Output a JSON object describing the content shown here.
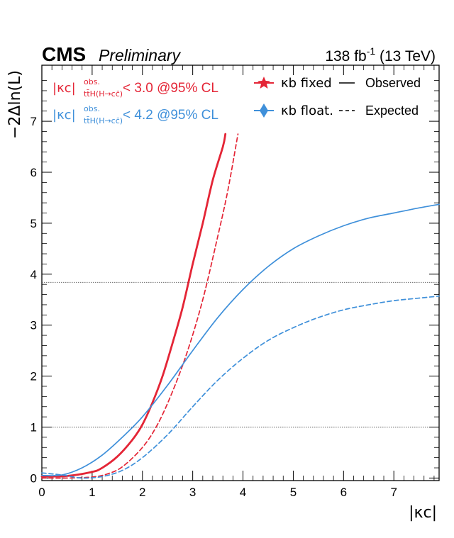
{
  "header": {
    "experiment": "CMS",
    "status": "Preliminary",
    "lumi_text": "138 fb",
    "lumi_exp": "-1",
    "energy_text": " (13 TeV)"
  },
  "axes": {
    "xlabel": "|κc|",
    "ylabel": "−2Δln(L)"
  },
  "annotations": {
    "limit_fixed": {
      "kc": "|κc|",
      "sup": "obs.",
      "sub": "tt̄H(H→cc̄)",
      "rest": " < 3.0 @95% CL",
      "color": "#e42536"
    },
    "limit_float": {
      "kc": "|κc|",
      "sup": "obs.",
      "sub": "tt̄H(H→cc̄)",
      "rest": " < 4.2 @95% CL",
      "color": "#3f90da"
    }
  },
  "legend": {
    "fixed": "κb fixed",
    "float": "κb float.",
    "observed": "Observed",
    "expected": "Expected"
  },
  "chart_data": {
    "type": "line",
    "xlabel": "|κc|",
    "ylabel": "−2Δln(L)",
    "xlim": [
      0,
      7.9
    ],
    "ylim": [
      -0.05,
      8.1
    ],
    "xticks": [
      0,
      1,
      2,
      3,
      4,
      5,
      6,
      7
    ],
    "yticks": [
      0,
      1,
      2,
      3,
      4,
      5,
      6,
      7
    ],
    "reference_lines": [
      1,
      3.84
    ],
    "grid": false,
    "legend_position": "top-right",
    "series": [
      {
        "name": "κb fixed",
        "kind": "Observed",
        "color": "#e42536",
        "linestyle": "solid",
        "x": [
          0,
          0.5,
          1.0,
          1.2,
          1.5,
          1.8,
          2.0,
          2.2,
          2.4,
          2.6,
          2.8,
          3.0,
          3.2,
          3.4,
          3.6,
          3.65
        ],
        "y": [
          0.03,
          0.04,
          0.12,
          0.2,
          0.42,
          0.75,
          1.05,
          1.48,
          2.0,
          2.65,
          3.35,
          4.2,
          5.0,
          5.85,
          6.5,
          6.75
        ]
      },
      {
        "name": "κb fixed",
        "kind": "Expected",
        "color": "#e42536",
        "linestyle": "dashed",
        "x": [
          0,
          0.5,
          1.0,
          1.3,
          1.6,
          2.0,
          2.3,
          2.6,
          2.9,
          3.2,
          3.5,
          3.7,
          3.9
        ],
        "y": [
          0,
          0,
          0.02,
          0.08,
          0.22,
          0.6,
          1.05,
          1.7,
          2.5,
          3.5,
          4.75,
          5.65,
          6.75
        ]
      },
      {
        "name": "κb float.",
        "kind": "Observed",
        "color": "#3f90da",
        "linestyle": "solid",
        "x": [
          0,
          0.4,
          0.8,
          1.2,
          1.6,
          2.0,
          2.5,
          3.0,
          3.5,
          4.0,
          4.5,
          5.0,
          5.5,
          6.0,
          6.5,
          7.0,
          7.5,
          7.9
        ],
        "y": [
          0.05,
          0.06,
          0.2,
          0.45,
          0.8,
          1.2,
          1.82,
          2.5,
          3.15,
          3.7,
          4.15,
          4.5,
          4.75,
          4.95,
          5.1,
          5.2,
          5.3,
          5.37
        ]
      },
      {
        "name": "κb float.",
        "kind": "Expected",
        "color": "#3f90da",
        "linestyle": "dashed",
        "x": [
          0,
          0.4,
          0.8,
          1.2,
          1.6,
          2.0,
          2.5,
          3.0,
          3.5,
          4.0,
          4.5,
          5.0,
          5.5,
          6.0,
          6.5,
          7.0,
          7.5,
          7.9
        ],
        "y": [
          0.1,
          0.06,
          0.0,
          0.03,
          0.15,
          0.4,
          0.85,
          1.4,
          1.92,
          2.35,
          2.7,
          2.95,
          3.15,
          3.3,
          3.4,
          3.48,
          3.53,
          3.57
        ]
      }
    ]
  }
}
